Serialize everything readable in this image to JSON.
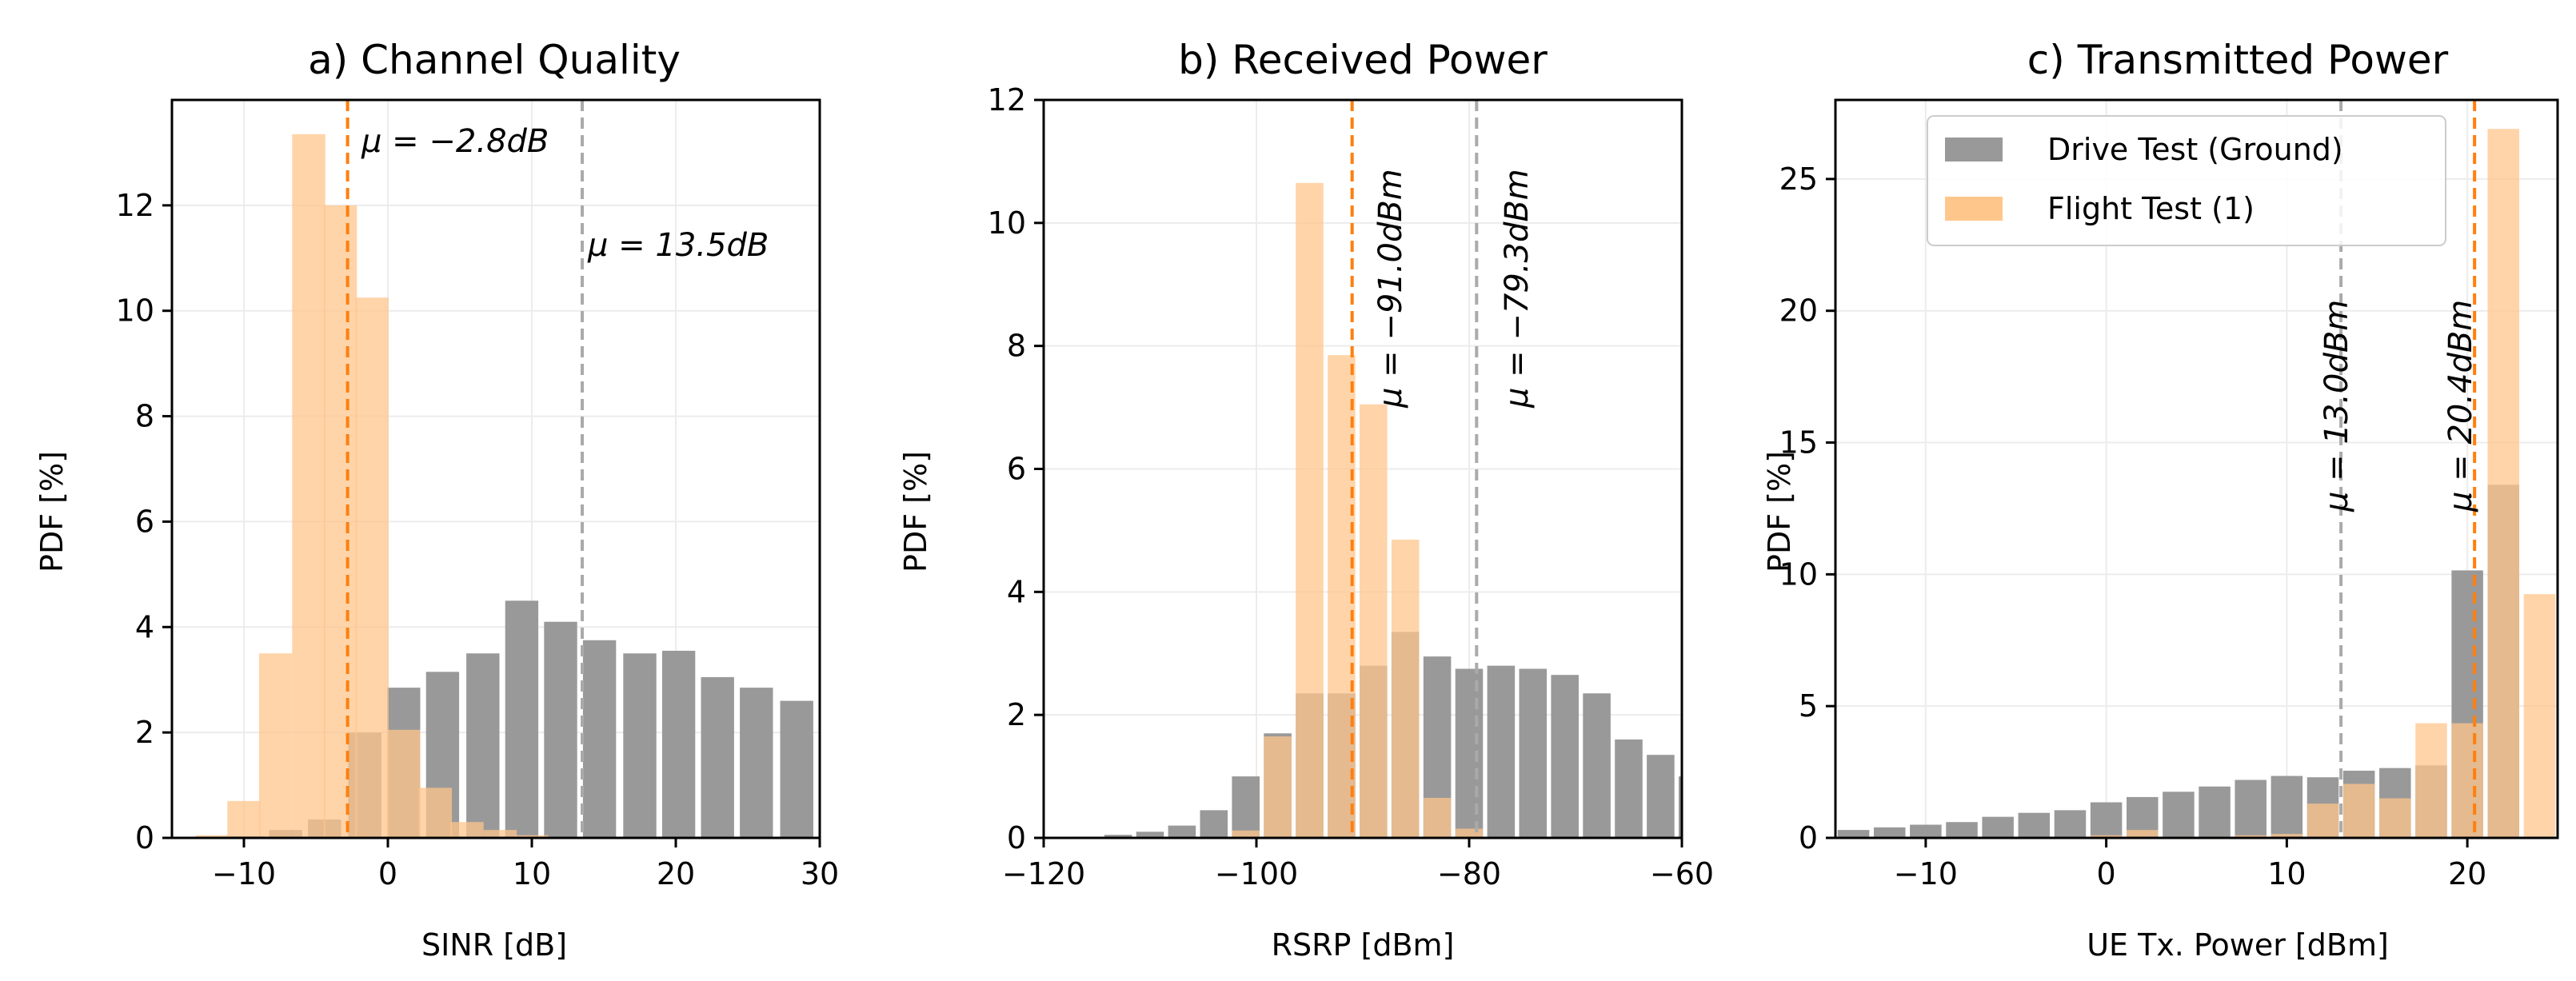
{
  "colors": {
    "drive": "#999999",
    "flight": "#ffc68c",
    "drive_mean_line": "#aaaaaa",
    "flight_mean_line": "#ff7f0e",
    "grid": "#ececec"
  },
  "legend": {
    "drive": "Drive Test (Ground)",
    "flight": "Flight Test (1)"
  },
  "chart_data": [
    {
      "type": "bar",
      "title": "a) Channel Quality",
      "xlabel": "SINR [dB]",
      "ylabel": "PDF [%]",
      "xlim": [
        -15,
        30
      ],
      "ylim": [
        0,
        14
      ],
      "xticks": [
        -10,
        0,
        10,
        20,
        30
      ],
      "xtick_labels": [
        "−10",
        "0",
        "10",
        "20",
        "30"
      ],
      "yticks": [
        0,
        2,
        4,
        6,
        8,
        10,
        12
      ],
      "ytick_labels": [
        "0",
        "2",
        "4",
        "6",
        "8",
        "10",
        "12"
      ],
      "bar_width": 2.3,
      "series": [
        {
          "name": "Drive Test (Ground)",
          "x": [
            -12.5,
            -9.8,
            -7.1,
            -4.4,
            -1.6,
            1.1,
            3.8,
            6.6,
            9.3,
            12.0,
            14.7,
            17.5,
            20.2,
            22.9,
            25.6,
            28.4
          ],
          "values": [
            0.0,
            0.03,
            0.15,
            0.35,
            2.0,
            2.85,
            3.15,
            3.5,
            4.5,
            4.1,
            3.75,
            3.5,
            3.55,
            3.05,
            2.85,
            2.6
          ]
        },
        {
          "name": "Flight Test (1)",
          "x": [
            -12.2,
            -10.0,
            -7.8,
            -5.5,
            -3.3,
            -1.1,
            1.1,
            3.3,
            5.5,
            7.8,
            10.0
          ],
          "values": [
            0.05,
            0.7,
            3.5,
            13.35,
            12.0,
            10.25,
            2.05,
            0.95,
            0.3,
            0.15,
            0.05
          ]
        }
      ],
      "extra_drive_last": {
        "x": 28.4,
        "value": 1.9
      },
      "means": [
        {
          "series": "Drive Test (Ground)",
          "value": 13.5,
          "label": "μ = 13.5dB"
        },
        {
          "series": "Flight Test (1)",
          "value": -2.8,
          "label": "μ = −2.8dB"
        }
      ]
    },
    {
      "type": "bar",
      "title": "b) Received Power",
      "xlabel": "RSRP [dBm]",
      "ylabel": "PDF [%]",
      "xlim": [
        -120,
        -60
      ],
      "ylim": [
        0,
        12
      ],
      "xticks": [
        -120,
        -100,
        -80,
        -60
      ],
      "xtick_labels": [
        "−120",
        "−100",
        "−80",
        "−60"
      ],
      "yticks": [
        0,
        2,
        4,
        6,
        8,
        10,
        12
      ],
      "ytick_labels": [
        "0",
        "2",
        "4",
        "6",
        "8",
        "10",
        "12"
      ],
      "bar_width": 2.6,
      "series": [
        {
          "name": "Drive Test (Ground)",
          "x": [
            -119.0,
            -116.0,
            -113.0,
            -110.0,
            -107.0,
            -104.0,
            -101.0,
            -98.0,
            -95.0,
            -92.0,
            -89.0,
            -86.0,
            -83.0,
            -80.0,
            -77.0,
            -74.0,
            -71.0,
            -68.0,
            -65.0,
            -62.0,
            -59.0
          ],
          "values": [
            0.0,
            0.02,
            0.05,
            0.1,
            0.2,
            0.45,
            1.0,
            1.7,
            2.35,
            2.35,
            2.8,
            3.35,
            2.95,
            2.75,
            2.8,
            2.75,
            2.65,
            2.35,
            1.6,
            1.35,
            1.0
          ]
        },
        {
          "name": "Flight Test (1)",
          "x": [
            -101.0,
            -98.0,
            -95.0,
            -92.0,
            -89.0,
            -86.0,
            -83.0,
            -80.0
          ],
          "values": [
            0.12,
            1.65,
            10.65,
            7.85,
            7.05,
            4.85,
            0.65,
            0.15
          ]
        }
      ],
      "means": [
        {
          "series": "Drive Test (Ground)",
          "value": -79.3,
          "label": "μ = −79.3dBm"
        },
        {
          "series": "Flight Test (1)",
          "value": -91.0,
          "label": "μ = −91.0dBm"
        }
      ]
    },
    {
      "type": "bar",
      "title": "c) Transmitted Power",
      "xlabel": "UE Tx. Power [dBm]",
      "ylabel": "PDF [%]",
      "xlim": [
        -15,
        25
      ],
      "ylim": [
        0,
        28
      ],
      "xticks": [
        -10,
        0,
        10,
        20
      ],
      "xtick_labels": [
        "−10",
        "0",
        "10",
        "20"
      ],
      "yticks": [
        0,
        5,
        10,
        15,
        20,
        25
      ],
      "ytick_labels": [
        "0",
        "5",
        "10",
        "15",
        "20",
        "25"
      ],
      "bar_width": 1.75,
      "series": [
        {
          "name": "Drive Test (Ground)",
          "x": [
            -14.0,
            -12.0,
            -10.0,
            -8.0,
            -6.0,
            -4.0,
            -2.0,
            0.0,
            2.0,
            4.0,
            6.0,
            8.0,
            10.0,
            12.0,
            14.0,
            16.0,
            18.0,
            20.0,
            22.0,
            24.0
          ],
          "values": [
            0.3,
            0.4,
            0.5,
            0.6,
            0.8,
            0.95,
            1.05,
            1.35,
            1.55,
            1.75,
            1.95,
            2.2,
            2.35,
            2.3,
            2.55,
            2.65,
            2.75,
            10.15,
            13.4,
            0.0
          ]
        },
        {
          "name": "Flight Test (1)",
          "x": [
            0.0,
            2.0,
            4.0,
            6.0,
            8.0,
            10.0,
            12.0,
            14.0,
            16.0,
            18.0,
            20.0,
            22.0,
            24.0
          ],
          "values": [
            0.1,
            0.3,
            0.05,
            0.05,
            0.1,
            0.15,
            1.3,
            2.05,
            1.5,
            4.35,
            4.35,
            26.9,
            9.25
          ]
        }
      ],
      "means": [
        {
          "series": "Drive Test (Ground)",
          "value": 13.0,
          "label": "μ = 13.0dBm"
        },
        {
          "series": "Flight Test (1)",
          "value": 20.4,
          "label": "μ = 20.4dBm"
        }
      ]
    }
  ]
}
